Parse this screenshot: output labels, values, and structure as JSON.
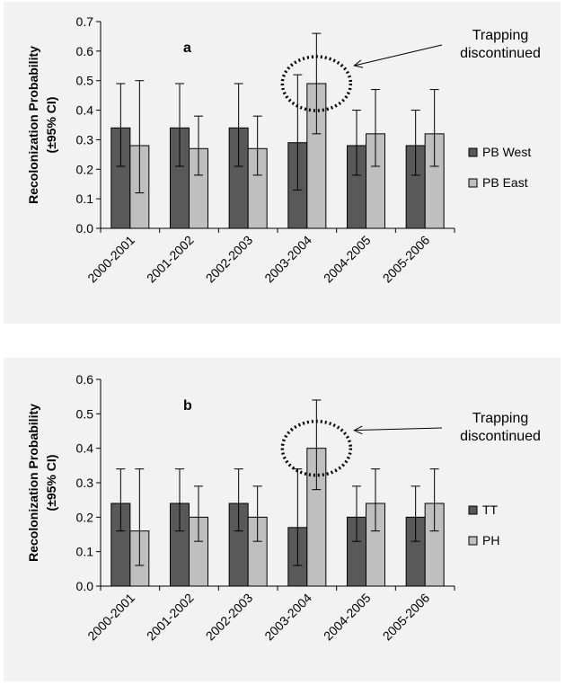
{
  "colors": {
    "series1": "#595959",
    "series2": "#bfbfbf",
    "background": "#f2f2f2"
  },
  "chart_data": [
    {
      "type": "bar",
      "panel_label": "a",
      "ylabel": "Recolonization Probability",
      "ylabel2": "(±95% CI)",
      "ylim": [
        0,
        0.7
      ],
      "ytick_step": 0.1,
      "categories": [
        "2000-2001",
        "2001-2002",
        "2002-2003",
        "2003-2004",
        "2004-2005",
        "2005-2006"
      ],
      "series": [
        {
          "name": "PB West",
          "values": [
            0.34,
            0.34,
            0.34,
            0.29,
            0.28,
            0.28
          ],
          "ci_low": [
            0.21,
            0.21,
            0.21,
            0.13,
            0.18,
            0.18
          ],
          "ci_high": [
            0.49,
            0.49,
            0.49,
            0.52,
            0.4,
            0.4
          ]
        },
        {
          "name": "PB East",
          "values": [
            0.28,
            0.27,
            0.27,
            0.49,
            0.32,
            0.32
          ],
          "ci_low": [
            0.12,
            0.18,
            0.18,
            0.32,
            0.21,
            0.21
          ],
          "ci_high": [
            0.5,
            0.38,
            0.38,
            0.66,
            0.47,
            0.47
          ]
        }
      ],
      "annotation": {
        "line1": "Trapping",
        "line2": "discontinued",
        "category": "2003-2004"
      },
      "legend_position": "right",
      "grid": false
    },
    {
      "type": "bar",
      "panel_label": "b",
      "ylabel": "Recolonization Probability",
      "ylabel2": "(±95% CI)",
      "ylim": [
        0,
        0.6
      ],
      "ytick_step": 0.1,
      "categories": [
        "2000-2001",
        "2001-2002",
        "2002-2003",
        "2003-2004",
        "2004-2005",
        "2005-2006"
      ],
      "series": [
        {
          "name": "TT",
          "values": [
            0.24,
            0.24,
            0.24,
            0.17,
            0.2,
            0.2
          ],
          "ci_low": [
            0.16,
            0.16,
            0.16,
            0.06,
            0.13,
            0.13
          ],
          "ci_high": [
            0.34,
            0.34,
            0.34,
            0.34,
            0.29,
            0.29
          ]
        },
        {
          "name": "PH",
          "values": [
            0.16,
            0.2,
            0.2,
            0.4,
            0.24,
            0.24
          ],
          "ci_low": [
            0.06,
            0.13,
            0.13,
            0.28,
            0.16,
            0.16
          ],
          "ci_high": [
            0.34,
            0.29,
            0.29,
            0.54,
            0.34,
            0.34
          ]
        }
      ],
      "annotation": {
        "line1": "Trapping",
        "line2": "discontinued",
        "category": "2003-2004"
      },
      "legend_position": "right",
      "grid": false
    }
  ]
}
